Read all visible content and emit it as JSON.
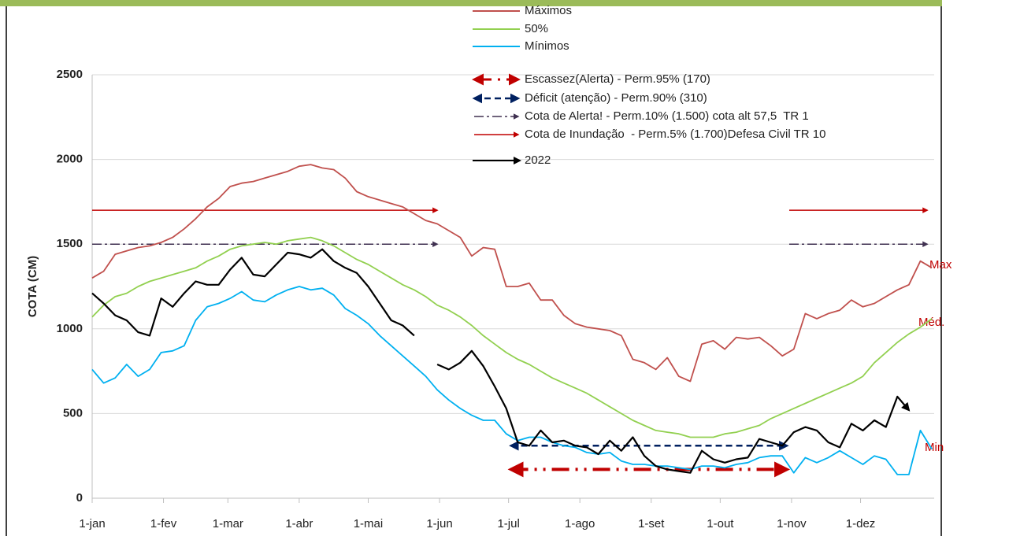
{
  "chart_data": {
    "type": "line",
    "ylabel": "COTA (CM)",
    "x": [
      0,
      5,
      10,
      15,
      20,
      25,
      30,
      35,
      40,
      45,
      50,
      55,
      60,
      65,
      70,
      75,
      80,
      85,
      90,
      95,
      100,
      105,
      110,
      115,
      120,
      125,
      130,
      135,
      140,
      145,
      150,
      155,
      160,
      165,
      170,
      175,
      180,
      185,
      190,
      195,
      200,
      205,
      210,
      215,
      220,
      225,
      230,
      235,
      240,
      245,
      250,
      255,
      260,
      265,
      270,
      275,
      280,
      285,
      290,
      295,
      300,
      305,
      310,
      315,
      320,
      325,
      330,
      335,
      340,
      345,
      350,
      355,
      360,
      365
    ],
    "xlim": [
      0,
      366
    ],
    "xticks": [
      {
        "value": 0,
        "label": "1-jan"
      },
      {
        "value": 31,
        "label": "1-fev"
      },
      {
        "value": 59,
        "label": "1-mar"
      },
      {
        "value": 90,
        "label": "1-abr"
      },
      {
        "value": 120,
        "label": "1-mai"
      },
      {
        "value": 151,
        "label": "1-jun"
      },
      {
        "value": 181,
        "label": "1-jul"
      },
      {
        "value": 212,
        "label": "1-ago"
      },
      {
        "value": 243,
        "label": "1-set"
      },
      {
        "value": 273,
        "label": "1-out"
      },
      {
        "value": 304,
        "label": "1-nov"
      },
      {
        "value": 334,
        "label": "1-dez"
      }
    ],
    "ylim": [
      0,
      2500
    ],
    "yticks": [
      0,
      500,
      1000,
      1500,
      2000,
      2500
    ],
    "grid": true,
    "series": [
      {
        "name": "Máximos",
        "color": "#c0504d",
        "values": [
          1300,
          1340,
          1440,
          1460,
          1480,
          1490,
          1510,
          1540,
          1590,
          1650,
          1720,
          1770,
          1840,
          1860,
          1870,
          1890,
          1910,
          1930,
          1960,
          1970,
          1950,
          1940,
          1890,
          1810,
          1780,
          1760,
          1740,
          1720,
          1680,
          1640,
          1620,
          1580,
          1540,
          1430,
          1480,
          1470,
          1250,
          1250,
          1270,
          1170,
          1170,
          1080,
          1030,
          1010,
          1000,
          990,
          960,
          820,
          800,
          760,
          830,
          720,
          690,
          910,
          930,
          880,
          950,
          940,
          950,
          900,
          840,
          880,
          1090,
          1060,
          1090,
          1110,
          1170,
          1130,
          1150,
          1190,
          1230,
          1260,
          1400,
          1360
        ]
      },
      {
        "name": "50%",
        "color": "#92d050",
        "values": [
          1070,
          1140,
          1190,
          1210,
          1250,
          1280,
          1300,
          1320,
          1340,
          1360,
          1400,
          1430,
          1470,
          1490,
          1500,
          1510,
          1500,
          1520,
          1530,
          1540,
          1520,
          1490,
          1450,
          1410,
          1380,
          1340,
          1300,
          1260,
          1230,
          1190,
          1140,
          1110,
          1070,
          1020,
          960,
          910,
          860,
          820,
          790,
          750,
          710,
          680,
          650,
          620,
          580,
          540,
          500,
          460,
          430,
          400,
          390,
          380,
          360,
          360,
          360,
          380,
          390,
          410,
          430,
          470,
          500,
          530,
          560,
          590,
          620,
          650,
          680,
          720,
          800,
          860,
          920,
          970,
          1010,
          1060
        ]
      },
      {
        "name": "Mínimos",
        "color": "#00b0f0",
        "values": [
          760,
          680,
          710,
          790,
          720,
          760,
          860,
          870,
          900,
          1050,
          1130,
          1150,
          1180,
          1220,
          1170,
          1160,
          1200,
          1230,
          1250,
          1230,
          1240,
          1200,
          1120,
          1080,
          1030,
          960,
          900,
          840,
          780,
          720,
          640,
          580,
          530,
          490,
          460,
          460,
          380,
          340,
          360,
          360,
          330,
          310,
          300,
          270,
          260,
          270,
          220,
          200,
          200,
          190,
          190,
          180,
          170,
          190,
          190,
          180,
          200,
          210,
          240,
          250,
          250,
          150,
          240,
          210,
          240,
          280,
          240,
          200,
          250,
          230,
          140,
          140,
          400,
          290
        ]
      },
      {
        "name": "2022",
        "color": "#000000",
        "values": [
          1210,
          1150,
          1080,
          1050,
          980,
          960,
          1180,
          1130,
          1210,
          1280,
          1260,
          1260,
          1350,
          1420,
          1320,
          1310,
          1380,
          1450,
          1440,
          1420,
          1470,
          1400,
          1360,
          1330,
          1250,
          1150,
          1050,
          1020,
          960,
          null,
          790,
          760,
          800,
          870,
          780,
          660,
          530,
          330,
          310,
          400,
          330,
          340,
          310,
          300,
          260,
          340,
          280,
          360,
          250,
          190,
          170,
          160,
          150,
          280,
          230,
          210,
          230,
          240,
          350,
          330,
          310,
          390,
          420,
          400,
          330,
          300,
          440,
          400,
          460,
          420,
          600,
          520,
          null,
          null
        ]
      }
    ],
    "reference_lines": [
      {
        "name": "Escassez(Alerta) - Perm.95% (170)",
        "color": "#c00000",
        "value": 170,
        "dash": "22 8 3 8 3 8",
        "width": 4,
        "arrows": "both",
        "segments": [
          [
            182,
            302
          ]
        ]
      },
      {
        "name": "Déficit (atenção) - Perm.90% (310)",
        "color": "#002060",
        "value": 310,
        "dash": "8 5",
        "width": 2.5,
        "arrows": "both",
        "segments": [
          [
            182,
            302
          ]
        ]
      },
      {
        "name": "Cota de Alerta! - Perm.10% (1.500) cota alt 57,5  TR 1",
        "color": "#403151",
        "value": 1500,
        "dash": "12 4 3 4",
        "width": 1.5,
        "arrows": "end",
        "segments": [
          [
            0,
            150
          ],
          [
            303,
            363
          ]
        ]
      },
      {
        "name": "Cota de Inundação  - Perm.5% (1.700)Defesa Civil TR 10",
        "color": "#c00000",
        "value": 1700,
        "dash": "",
        "width": 1.5,
        "arrows": "end",
        "segments": [
          [
            0,
            150
          ],
          [
            303,
            363
          ]
        ]
      }
    ],
    "annotations": [
      "Max",
      "Méd.",
      "Min"
    ]
  }
}
